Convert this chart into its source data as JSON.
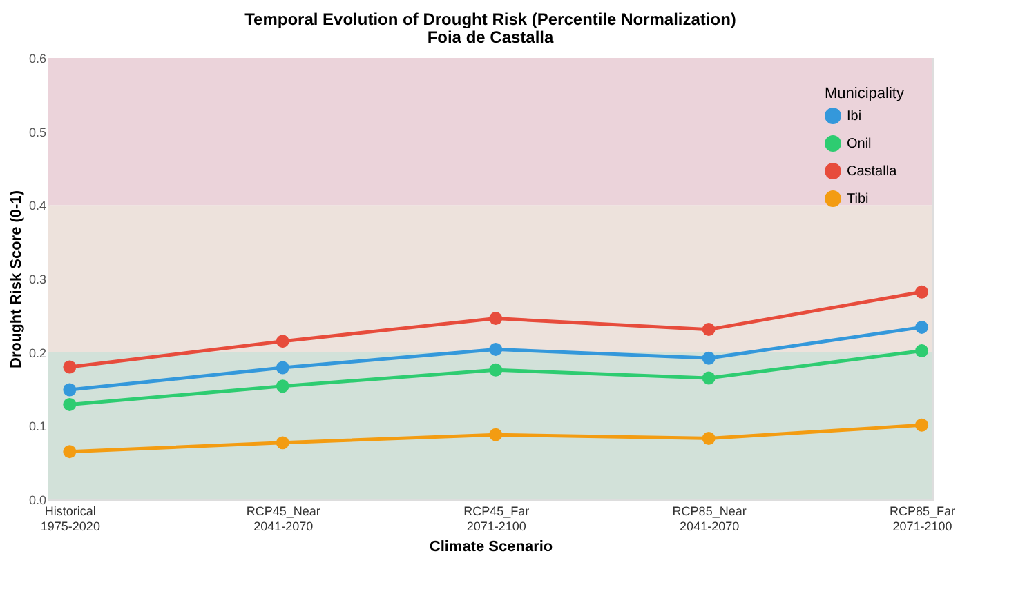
{
  "chart_data": {
    "type": "line",
    "title": "Temporal Evolution of Drought Risk (Percentile Normalization)",
    "subtitle": "Foia de Castalla",
    "xlabel": "Climate Scenario",
    "ylabel": "Drought Risk Score (0-1)",
    "legend_title": "Municipality",
    "categories": [
      "Historical\n1975-2020",
      "RCP45_Near\n2041-2070",
      "RCP45_Far\n2071-2100",
      "RCP85_Near\n2041-2070",
      "RCP85_Far\n2071-2100"
    ],
    "series": [
      {
        "name": "Ibi",
        "color": "#3498db",
        "values": [
          0.149,
          0.179,
          0.204,
          0.192,
          0.234
        ]
      },
      {
        "name": "Onil",
        "color": "#2ecc71",
        "values": [
          0.129,
          0.154,
          0.176,
          0.165,
          0.202
        ]
      },
      {
        "name": "Castalla",
        "color": "#e74c3c",
        "values": [
          0.18,
          0.215,
          0.246,
          0.231,
          0.282
        ]
      },
      {
        "name": "Tibi",
        "color": "#f39c12",
        "values": [
          0.065,
          0.077,
          0.088,
          0.083,
          0.101
        ]
      }
    ],
    "ylim": [
      0,
      0.6
    ],
    "yticks": [
      {
        "value": 0,
        "label": "0.0"
      },
      0.1,
      0.2,
      0.3,
      0.4,
      0.5,
      0.6
    ],
    "bands": [
      {
        "axis": "y",
        "from": 0,
        "to": 0.2,
        "color": "#d2e1d9"
      },
      {
        "axis": "y",
        "from": 0.2,
        "to": 0.4,
        "color": "#ede2dc"
      },
      {
        "axis": "y",
        "from": 0.4,
        "to": 0.6,
        "color": "#ebd3da"
      }
    ],
    "legend": "top right",
    "marker": "circle",
    "line_style": "solid",
    "grid": false
  }
}
